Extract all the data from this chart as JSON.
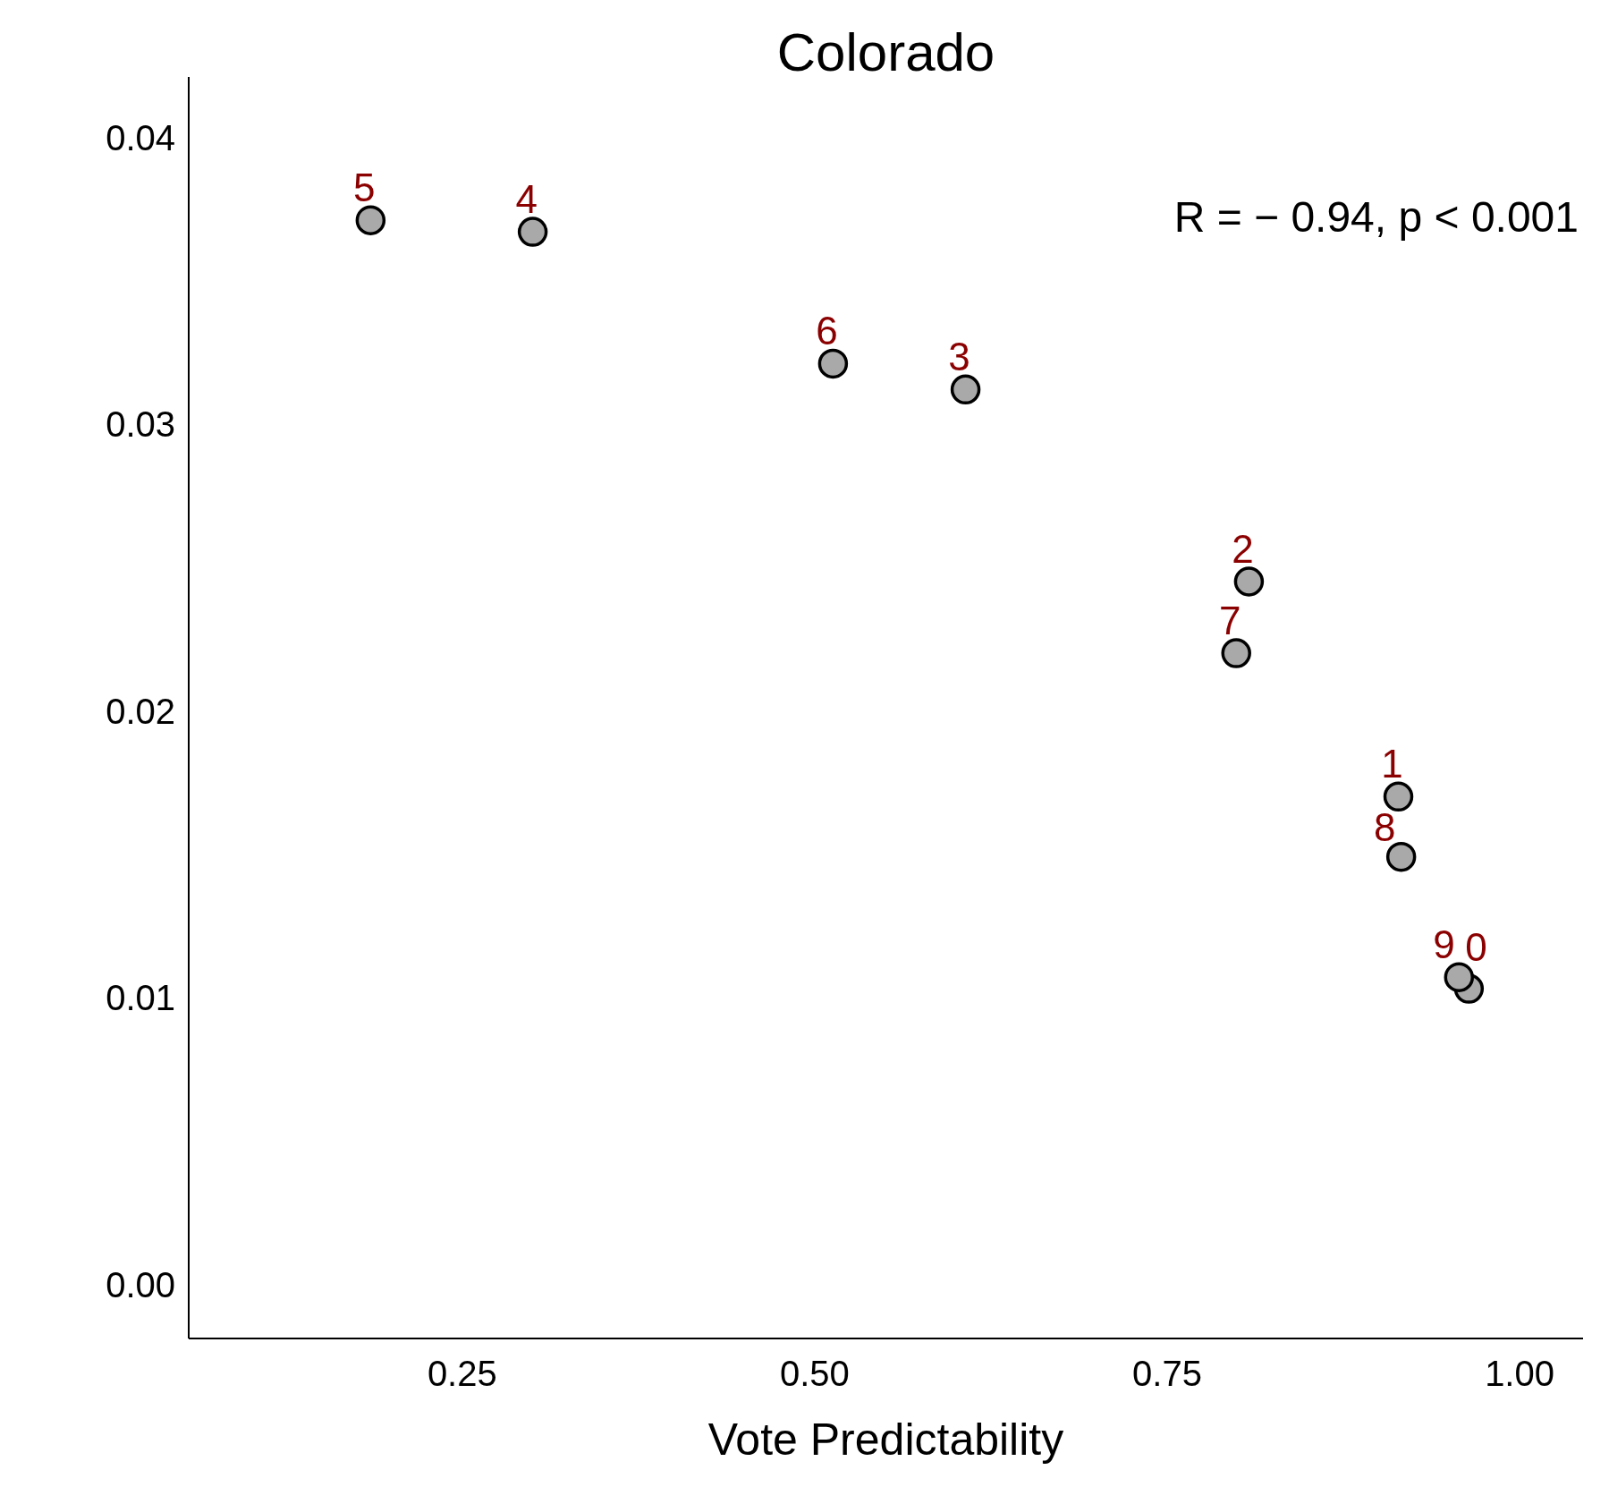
{
  "chart_data": {
    "type": "scatter",
    "title": "Colorado",
    "xlabel": "Vote Predictability",
    "annotations": [
      "R = − 0.94, p < 0.001",
      {
        "text": "0",
        "x": 0.964,
        "y": 0.0103
      },
      {
        "text": "1",
        "x": 0.914,
        "y": 0.017
      },
      {
        "text": "2",
        "x": 0.808,
        "y": 0.0245
      },
      {
        "text": "3",
        "x": 0.607,
        "y": 0.0312
      },
      {
        "text": "4",
        "x": 0.3,
        "y": 0.0367
      },
      {
        "text": "5",
        "x": 0.185,
        "y": 0.0371
      },
      {
        "text": "6",
        "x": 0.513,
        "y": 0.0321
      },
      {
        "text": "7",
        "x": 0.799,
        "y": 0.022
      },
      {
        "text": "8",
        "x": 0.916,
        "y": 0.0149
      },
      {
        "text": "9",
        "x": 0.957,
        "y": 0.0107
      }
    ],
    "x": [
      0.964,
      0.914,
      0.808,
      0.607,
      0.3,
      0.185,
      0.513,
      0.799,
      0.916,
      0.957
    ],
    "series": [
      {
        "color": "#a9a9a9",
        "values": [
          0.0103,
          0.017,
          0.0245,
          0.0312,
          0.0367,
          0.0371,
          0.0321,
          0.022,
          0.0149,
          0.0107
        ]
      }
    ],
    "xlim": [
      0.056,
      1.045
    ],
    "ylim": [
      -0.0019,
      0.0421
    ],
    "xticks": [
      0.25,
      {
        "value": 0.5,
        "label": "0.50"
      },
      0.75,
      {
        "value": 1,
        "label": "1.00"
      }
    ],
    "yticks": [
      {
        "value": 0,
        "label": "0.00"
      },
      0.01,
      0.02,
      0.03,
      0.04
    ],
    "marker": "circle"
  }
}
